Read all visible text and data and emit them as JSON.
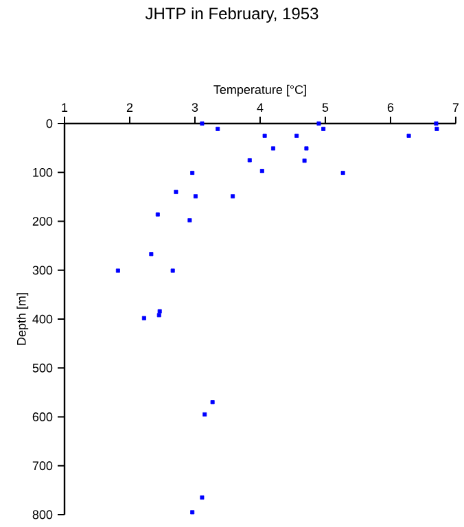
{
  "chart_data": {
    "type": "scatter",
    "title": "JHTP in February, 1953",
    "xlabel": "Temperature [°C]",
    "ylabel": "Depth [m]",
    "x": [
      3.11,
      3.35,
      4.07,
      4.56,
      4.9,
      4.97,
      6.28,
      6.7,
      6.71,
      4.2,
      4.71,
      3.84,
      4.68,
      4.03,
      2.96,
      5.27,
      2.71,
      3.01,
      3.58,
      2.43,
      2.92,
      2.33,
      1.82,
      2.66,
      2.22,
      2.46,
      2.45,
      3.27,
      3.15,
      3.11,
      2.96
    ],
    "values": [
      0,
      11,
      25,
      25,
      0,
      11,
      25,
      0,
      11,
      51,
      51,
      75,
      76,
      97,
      101,
      101,
      140,
      149,
      149,
      186,
      198,
      267,
      301,
      301,
      398,
      384,
      392,
      570,
      595,
      765,
      795
    ],
    "color": "#0000ff",
    "marker": "square",
    "xlim": [
      1,
      7
    ],
    "xticks": [
      1,
      2,
      3,
      4,
      5,
      6,
      7
    ],
    "ylim": [
      800,
      0
    ],
    "yticks": [
      0,
      100,
      200,
      300,
      400,
      500,
      600,
      700,
      800
    ]
  }
}
